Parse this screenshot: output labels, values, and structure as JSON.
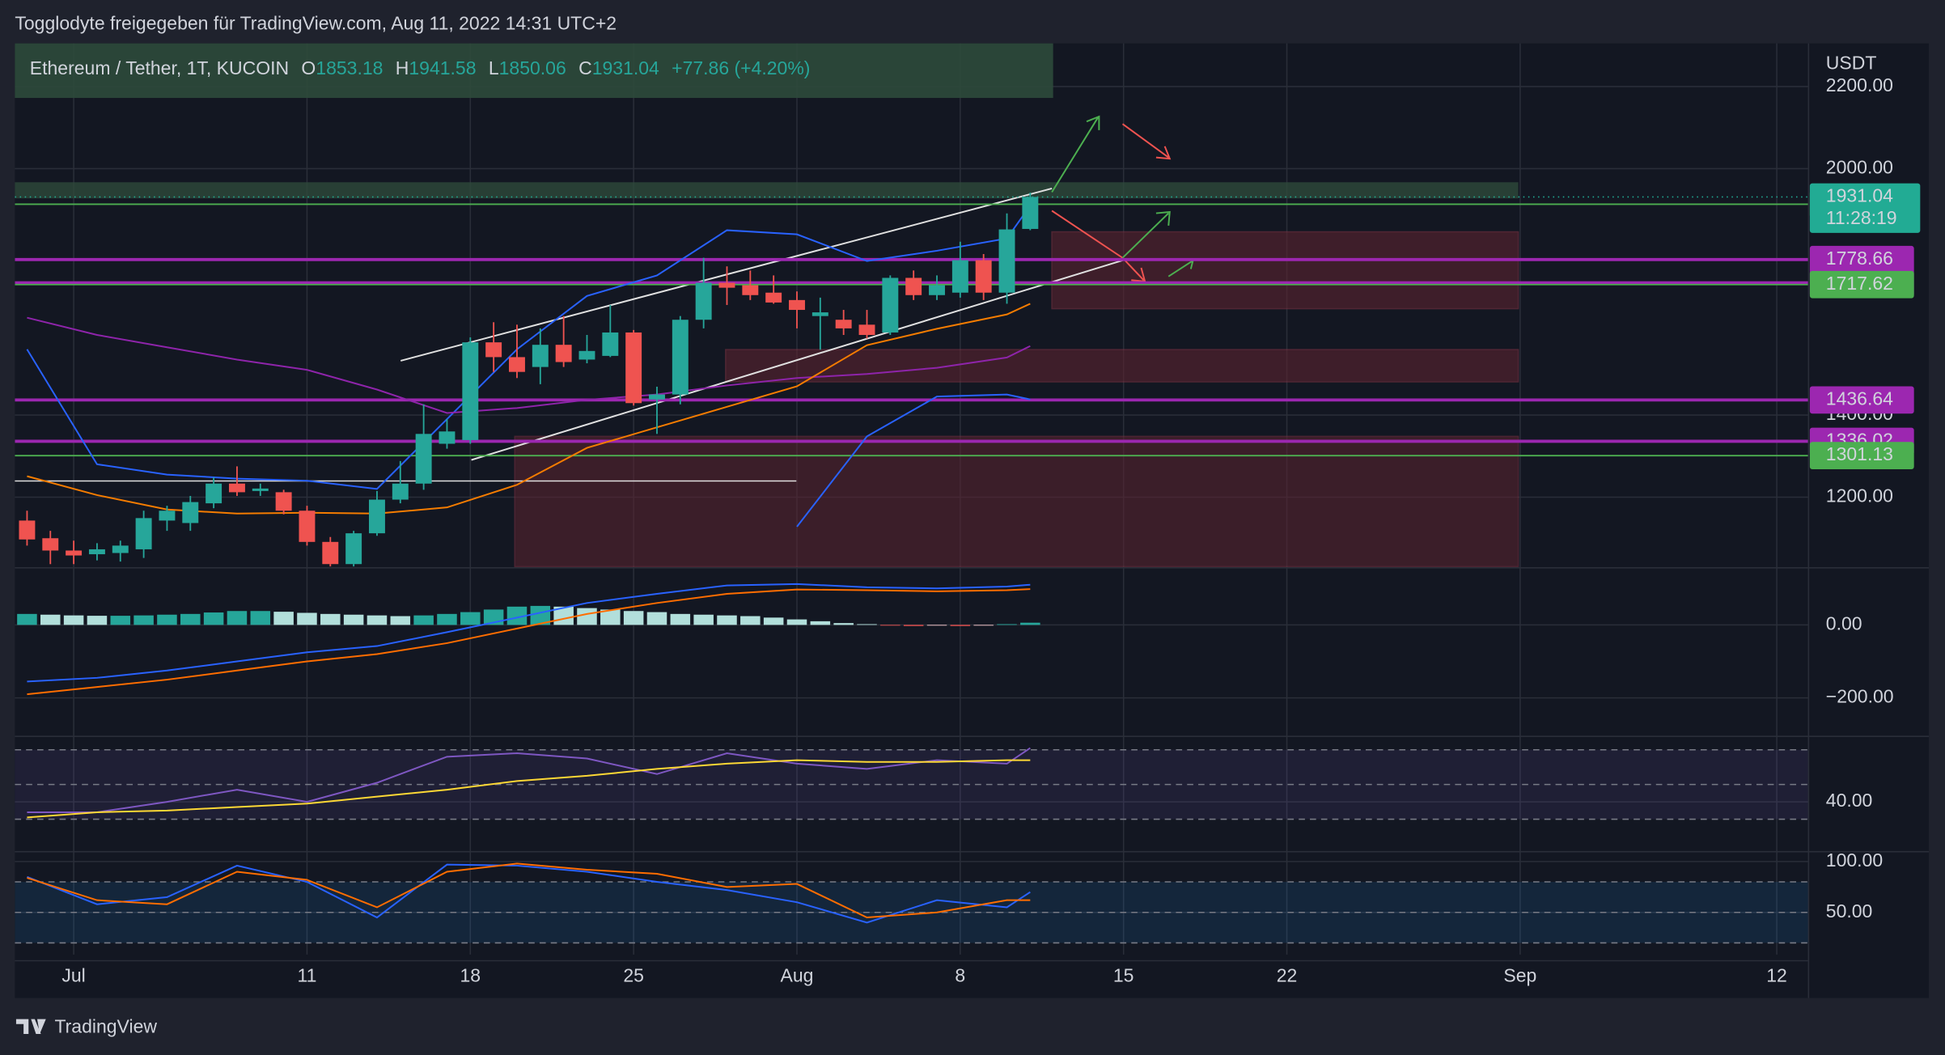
{
  "header": {
    "attribution": "Togglodyte freigegeben für TradingView.com, Aug 11, 2022 14:31 UTC+2"
  },
  "footer": {
    "brand": "TradingView"
  },
  "chart_data": [
    {
      "type": "candlestick",
      "title": "Ethereum / Tether, 1T, KUCOIN",
      "ohlc_labels": [
        "O",
        "H",
        "L",
        "C"
      ],
      "change": "+77.86 (+4.20%)",
      "y_label": "USDT",
      "countdown": "11:28:19",
      "up_color": "#26a69a",
      "down_color": "#ef5350",
      "last_color": "#22ab94",
      "x": [
        "06-29",
        "06-30",
        "07-01",
        "07-02",
        "07-03",
        "07-04",
        "07-05",
        "07-06",
        "07-07",
        "07-08",
        "07-09",
        "07-10",
        "07-11",
        "07-12",
        "07-13",
        "07-14",
        "07-15",
        "07-16",
        "07-17",
        "07-18",
        "07-19",
        "07-20",
        "07-21",
        "07-22",
        "07-23",
        "07-24",
        "07-25",
        "07-26",
        "07-27",
        "07-28",
        "07-29",
        "07-30",
        "07-31",
        "08-01",
        "08-02",
        "08-03",
        "08-04",
        "08-05",
        "08-06",
        "08-07",
        "08-08",
        "08-09",
        "08-10",
        "08-11"
      ],
      "open": [
        1143,
        1100,
        1070,
        1061,
        1064,
        1073,
        1143,
        1137,
        1185,
        1233,
        1215,
        1212,
        1167,
        1091,
        1037,
        1112,
        1194,
        1233,
        1330,
        1339,
        1577,
        1541,
        1517,
        1571,
        1535,
        1544,
        1601,
        1438,
        1450,
        1632,
        1722,
        1716,
        1698,
        1680,
        1641,
        1632,
        1620,
        1601,
        1734,
        1692,
        1698,
        1777,
        1698,
        1853.18
      ],
      "high": [
        1167,
        1118,
        1094,
        1088,
        1094,
        1167,
        1179,
        1203,
        1248,
        1275,
        1233,
        1218,
        1179,
        1103,
        1118,
        1215,
        1288,
        1426,
        1390,
        1589,
        1626,
        1620,
        1611,
        1641,
        1595,
        1668,
        1607,
        1469,
        1641,
        1783,
        1762,
        1752,
        1740,
        1701,
        1686,
        1656,
        1656,
        1740,
        1752,
        1740,
        1822,
        1792,
        1891,
        1941.58
      ],
      "low": [
        1082,
        1037,
        1037,
        1046,
        1043,
        1052,
        1118,
        1118,
        1173,
        1203,
        1203,
        1158,
        1082,
        1031,
        1031,
        1106,
        1185,
        1218,
        1318,
        1330,
        1505,
        1490,
        1475,
        1517,
        1526,
        1541,
        1423,
        1354,
        1426,
        1611,
        1668,
        1680,
        1671,
        1611,
        1559,
        1595,
        1586,
        1595,
        1680,
        1680,
        1686,
        1680,
        1671,
        1850.06
      ],
      "close": [
        1097,
        1070,
        1058,
        1073,
        1082,
        1149,
        1167,
        1188,
        1233,
        1212,
        1221,
        1167,
        1091,
        1037,
        1112,
        1194,
        1233,
        1354,
        1360,
        1577,
        1541,
        1505,
        1571,
        1529,
        1556,
        1601,
        1429,
        1450,
        1632,
        1722,
        1710,
        1692,
        1674,
        1656,
        1650,
        1611,
        1595,
        1734,
        1692,
        1716,
        1777,
        1698,
        1852,
        1931.04
      ],
      "xlim": [
        "06-28",
        "09-14"
      ],
      "xticks": [
        {
          "value": "07-01",
          "label": "Jul"
        },
        {
          "value": "07-11",
          "label": "11"
        },
        {
          "value": "07-18",
          "label": "18"
        },
        {
          "value": "07-25",
          "label": "25"
        },
        {
          "value": "08-01",
          "label": "Aug"
        },
        {
          "value": "08-08",
          "label": "8"
        },
        {
          "value": "08-15",
          "label": "15"
        },
        {
          "value": "08-22",
          "label": "22"
        },
        {
          "value": "09-01",
          "label": "Sep"
        },
        {
          "value": "09-12",
          "label": "12"
        }
      ],
      "ylim": [
        1031,
        2305
      ],
      "yticks": [
        {
          "value": 1200,
          "label": "1200.00"
        },
        {
          "value": 1400,
          "label": "1400.00"
        },
        {
          "value": 2000,
          "label": "2000.00"
        },
        {
          "value": 2200,
          "label": "2200.00"
        }
      ],
      "levels": [
        {
          "value": 1913.39,
          "color": "#4caf50"
        },
        {
          "value": 1778.66,
          "color": "#9c27b0"
        },
        {
          "value": 1721.99,
          "color": "#9c27b0"
        },
        {
          "value": 1717.62,
          "color": "#4caf50"
        },
        {
          "value": 1436.64,
          "color": "#9c27b0"
        },
        {
          "value": 1336.02,
          "color": "#9c27b0"
        },
        {
          "value": 1301.13,
          "color": "#4caf50"
        }
      ],
      "overlays": {
        "x": [
          "06-29",
          "07-02",
          "07-05",
          "07-08",
          "07-11",
          "07-14",
          "07-17",
          "07-20",
          "07-23",
          "07-26",
          "07-29",
          "08-01",
          "08-04",
          "08-07",
          "08-10",
          "08-11"
        ],
        "series": [
          {
            "color": "#2962ff",
            "values": [
              1560,
              1280,
              1255,
              1245,
              1240,
              1220,
              1390,
              1560,
              1690,
              1740,
              1850,
              1840,
              1775,
              1800,
              1830,
              1910
            ]
          },
          {
            "color": "#2962ff",
            "values": [
              null,
              null,
              null,
              null,
              null,
              null,
              null,
              null,
              null,
              null,
              null,
              1128,
              1348,
              1445,
              1450,
              1438
            ]
          },
          {
            "color": "#8e24aa",
            "values": [
              1637,
              1595,
              1565,
              1535,
              1510,
              1462,
              1405,
              1417,
              1437,
              1450,
              1472,
              1490,
              1500,
              1515,
              1540,
              1568
            ]
          },
          {
            "color": "#f57c00",
            "values": [
              1251,
              1205,
              1170,
              1160,
              1162,
              1160,
              1175,
              1230,
              1320,
              1370,
              1420,
              1470,
              1570,
              1610,
              1645,
              1671
            ]
          }
        ]
      }
    },
    {
      "type": "macd",
      "x": [
        "06-29",
        "07-02",
        "07-05",
        "07-08",
        "07-11",
        "07-14",
        "07-17",
        "07-20",
        "07-23",
        "07-26",
        "07-29",
        "08-01",
        "08-04",
        "08-07",
        "08-10",
        "08-11"
      ],
      "ylim": [
        -302,
        153
      ],
      "yticks": [
        {
          "value": 0,
          "label": "0.00"
        },
        {
          "value": -200,
          "label": "−200.00"
        }
      ],
      "series": [
        {
          "color": "#2962ff",
          "values": [
            -155,
            -145,
            -125,
            -100,
            -75,
            -58,
            -20,
            20,
            60,
            85,
            108,
            112,
            103,
            100,
            105,
            110
          ]
        },
        {
          "color": "#ff6d00",
          "values": [
            -190,
            -170,
            -150,
            -125,
            -100,
            -80,
            -50,
            -10,
            30,
            60,
            85,
            97,
            95,
            92,
            95,
            98
          ]
        }
      ],
      "histogram": [
        30,
        28,
        26,
        25,
        25,
        26,
        28,
        30,
        34,
        38,
        38,
        36,
        33,
        30,
        28,
        26,
        24,
        26,
        30,
        35,
        42,
        50,
        52,
        50,
        46,
        42,
        38,
        35,
        30,
        28,
        26,
        24,
        20,
        15,
        10,
        5,
        2,
        -2,
        -3,
        -2,
        -3,
        -2,
        2,
        6
      ]
    },
    {
      "type": "line",
      "x": [
        "06-29",
        "07-02",
        "07-05",
        "07-08",
        "07-11",
        "07-14",
        "07-17",
        "07-20",
        "07-23",
        "07-26",
        "07-29",
        "08-01",
        "08-04",
        "08-07",
        "08-10",
        "08-11"
      ],
      "ylim": [
        12,
        77
      ],
      "yticks": [
        {
          "value": 40,
          "label": "40.00"
        }
      ],
      "bands": [
        70,
        50,
        30
      ],
      "band_color": "#7e57c2",
      "series": [
        {
          "color": "#7e57c2",
          "values": [
            34,
            34,
            40,
            47,
            40,
            51,
            66,
            68,
            65,
            56,
            68,
            62,
            59,
            64,
            62,
            71
          ]
        },
        {
          "color": "#fdd835",
          "values": [
            31,
            34,
            35,
            37,
            39,
            43,
            47,
            52,
            55,
            59,
            62,
            64,
            63,
            63,
            64,
            64
          ]
        }
      ]
    },
    {
      "type": "line",
      "x": [
        "06-29",
        "07-02",
        "07-05",
        "07-08",
        "07-11",
        "07-14",
        "07-17",
        "07-20",
        "07-23",
        "07-26",
        "07-29",
        "08-01",
        "08-04",
        "08-07",
        "08-10",
        "08-11"
      ],
      "ylim": [
        8.5,
        108.5
      ],
      "yticks": [
        {
          "value": 100,
          "label": "100.00"
        },
        {
          "value": 50,
          "label": "50.00"
        }
      ],
      "bands": [
        80,
        50,
        20
      ],
      "band_color": "#2196f3",
      "series": [
        {
          "color": "#2962ff",
          "values": [
            85,
            58,
            65,
            96,
            80,
            45,
            97,
            96,
            90,
            80,
            72,
            60,
            40,
            62,
            55,
            70
          ]
        },
        {
          "color": "#ff6d00",
          "values": [
            84,
            62,
            58,
            90,
            82,
            55,
            90,
            98,
            92,
            88,
            75,
            78,
            45,
            50,
            62,
            62
          ]
        }
      ]
    }
  ]
}
